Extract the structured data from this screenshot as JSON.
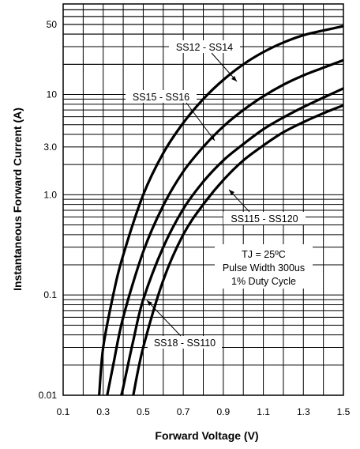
{
  "chart_data": {
    "type": "line",
    "xlabel": "Forward Voltage (V)",
    "ylabel": "Instantaneous Forward Current (A)",
    "xlim": [
      0.1,
      1.5
    ],
    "ylim": [
      0.01,
      80
    ],
    "yscale": "log",
    "grid": true,
    "x_ticks": [
      "0.1",
      "0.3",
      "0.5",
      "0.7",
      "0.9",
      "1.1",
      "1.3",
      "1.5"
    ],
    "y_ticks": [
      {
        "label": "0.01",
        "value": 0.01
      },
      {
        "label": "0.1",
        "value": 0.1
      },
      {
        "label": "1.0",
        "value": 1.0
      },
      {
        "label": "3.0",
        "value": 3.0
      },
      {
        "label": "10",
        "value": 10
      },
      {
        "label": "50",
        "value": 50
      }
    ],
    "series": [
      {
        "name": "SS12 - SS14",
        "x": [
          0.28,
          0.3,
          0.35,
          0.4,
          0.5,
          0.6,
          0.7,
          0.8,
          0.9,
          1.0,
          1.1,
          1.2,
          1.3,
          1.4,
          1.5
        ],
        "y": [
          0.01,
          0.03,
          0.1,
          0.25,
          1.0,
          2.6,
          5.2,
          9.0,
          14.0,
          20.0,
          26.5,
          33.0,
          39.0,
          43.5,
          48.0
        ]
      },
      {
        "name": "SS15 - SS16",
        "x": [
          0.32,
          0.35,
          0.4,
          0.5,
          0.6,
          0.7,
          0.8,
          0.9,
          1.0,
          1.1,
          1.2,
          1.3,
          1.4,
          1.5
        ],
        "y": [
          0.01,
          0.02,
          0.06,
          0.27,
          0.78,
          1.7,
          3.0,
          4.8,
          7.0,
          9.6,
          12.5,
          15.5,
          18.5,
          22.0
        ]
      },
      {
        "name": "SS18 - SS110",
        "x": [
          0.39,
          0.4,
          0.45,
          0.5,
          0.6,
          0.7,
          0.8,
          0.9,
          1.0,
          1.1,
          1.2,
          1.3,
          1.4,
          1.5
        ],
        "y": [
          0.01,
          0.012,
          0.035,
          0.09,
          0.3,
          0.72,
          1.35,
          2.2,
          3.2,
          4.5,
          5.9,
          7.5,
          9.3,
          11.5
        ]
      },
      {
        "name": "SS115 - SS120",
        "x": [
          0.45,
          0.5,
          0.6,
          0.7,
          0.8,
          0.9,
          1.0,
          1.1,
          1.2,
          1.3,
          1.4,
          1.5
        ],
        "y": [
          0.01,
          0.03,
          0.14,
          0.4,
          0.8,
          1.4,
          2.2,
          3.1,
          4.2,
          5.3,
          6.5,
          7.8
        ]
      }
    ],
    "annotations": {
      "label_ss12": "SS12 - SS14",
      "label_ss15": "SS15 - SS16",
      "label_ss18": "SS18 - SS110",
      "label_ss115": "SS115 - SS120",
      "cond_line1": "TJ = 25ºC",
      "cond_line2": "Pulse Width 300us",
      "cond_line3": "1% Duty Cycle"
    }
  }
}
